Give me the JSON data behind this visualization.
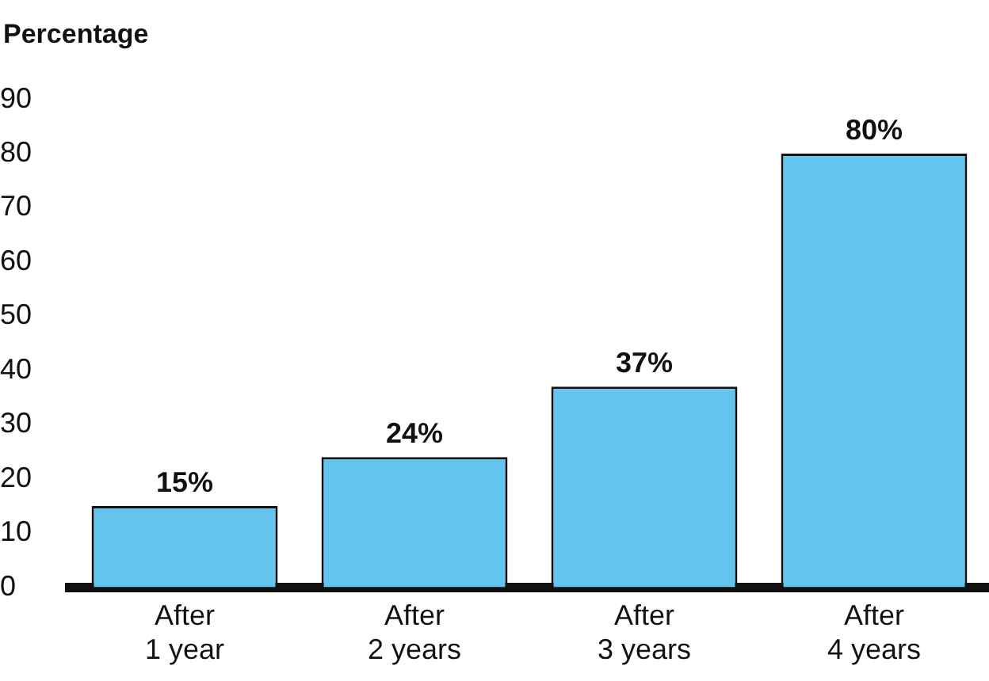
{
  "chart_data": {
    "type": "bar",
    "ylabel": "Percentage",
    "categories": [
      "After 1 year",
      "After 2 years",
      "After 3 years",
      "After 4 years"
    ],
    "values": [
      15,
      24,
      37,
      80
    ],
    "value_labels": [
      "15%",
      "24%",
      "37%",
      "80%"
    ],
    "color": "#63c5ee",
    "ylim": [
      0,
      90
    ],
    "yticks": [
      0,
      10,
      20,
      30,
      40,
      50,
      60,
      70,
      80,
      90
    ],
    "grid": false,
    "legend": false
  }
}
